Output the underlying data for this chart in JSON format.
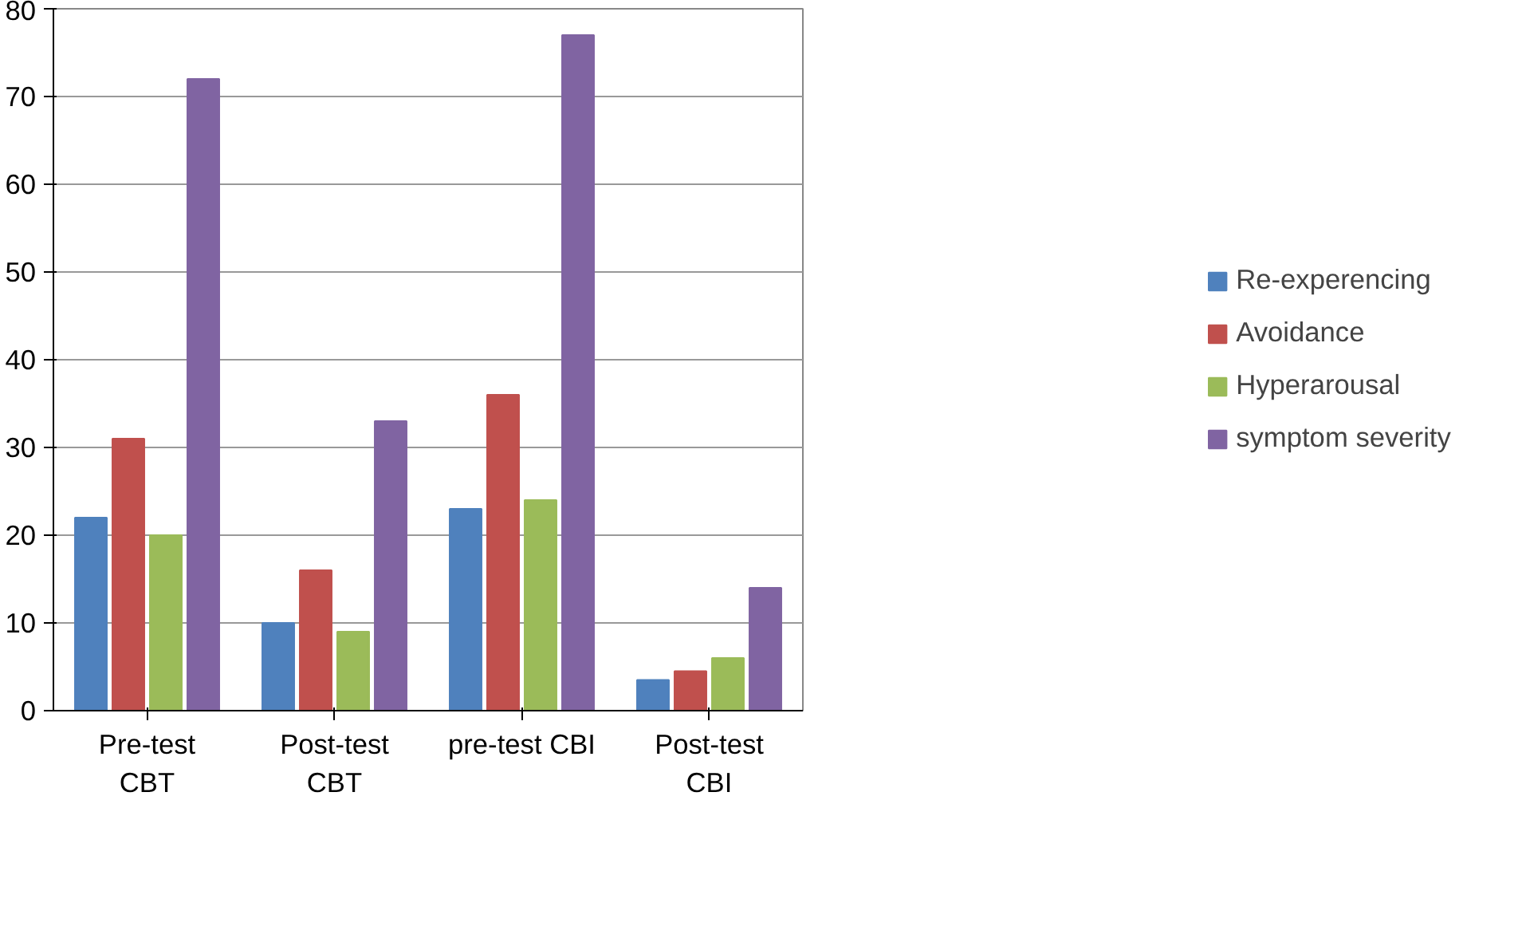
{
  "chart_data": {
    "type": "bar",
    "categories": [
      "Pre-test\nCBT",
      "Post-test\nCBT",
      "pre-test CBI",
      "Post-test\nCBI"
    ],
    "series": [
      {
        "name": "Re-experencing",
        "color": "#4f81bd",
        "values": [
          22,
          10,
          23,
          3.5
        ]
      },
      {
        "name": "Avoidance",
        "color": "#c0504d",
        "values": [
          31,
          16,
          36,
          4.5
        ]
      },
      {
        "name": "Hyperarousal",
        "color": "#9bbb59",
        "values": [
          20,
          9,
          24,
          6
        ]
      },
      {
        "name": "symptom severity",
        "color": "#8064a2",
        "values": [
          72,
          33,
          77,
          14
        ]
      }
    ],
    "ylim": [
      0,
      80
    ],
    "yticks": [
      0,
      10,
      20,
      30,
      40,
      50,
      60,
      70,
      80
    ],
    "grid": "y",
    "legend": "right"
  }
}
